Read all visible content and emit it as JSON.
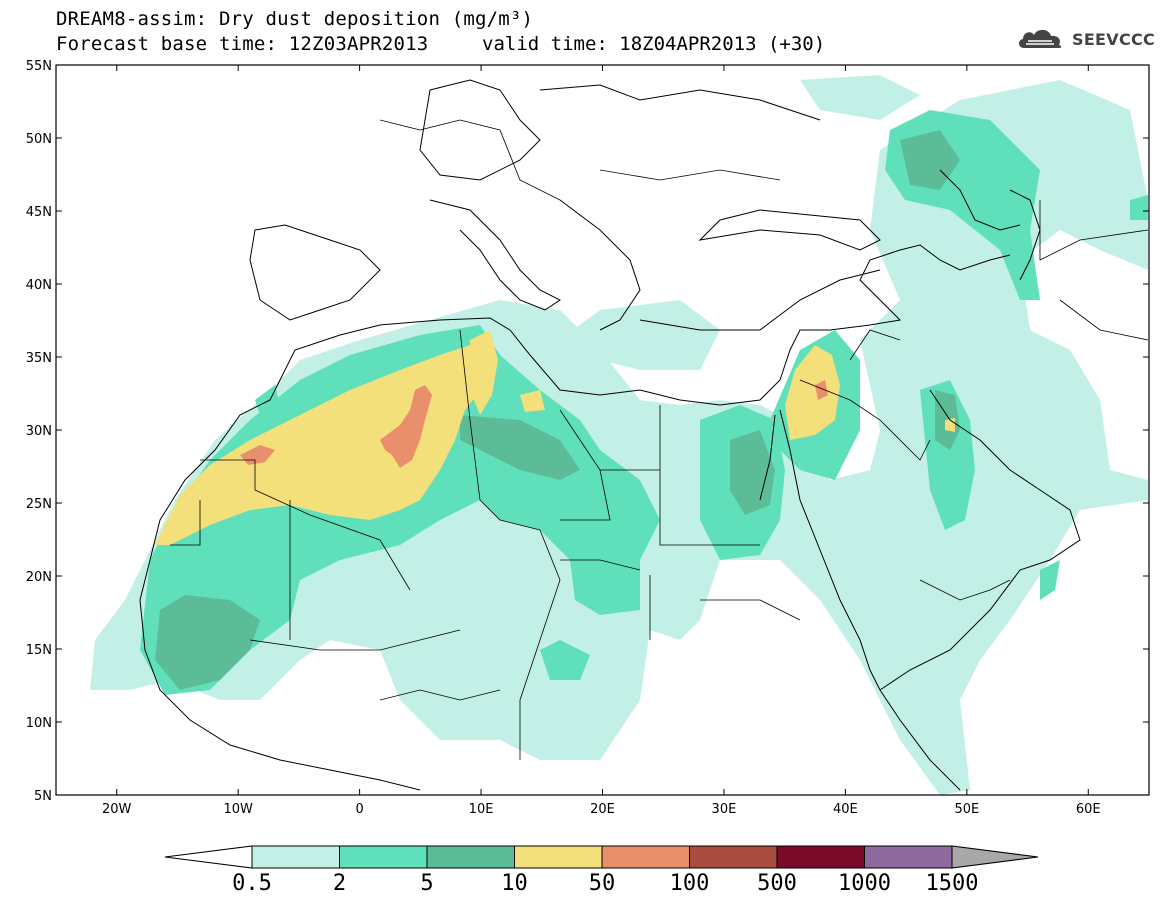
{
  "title": {
    "line1": "DREAM8-assim: Dry dust deposition (mg/m³)",
    "line2": "Forecast base time: 12Z03APR2013",
    "valid": "valid time: 18Z04APR2013 (+30)"
  },
  "logo": {
    "text": "SEEVCCC",
    "icon": "cloud-icon"
  },
  "map": {
    "region": "North Africa, Europe and Middle East",
    "lon_range": [
      -25,
      65
    ],
    "lat_range": [
      5,
      55
    ],
    "lat_ticks": [
      {
        "value": 55,
        "label": "55N"
      },
      {
        "value": 50,
        "label": "50N"
      },
      {
        "value": 45,
        "label": "45N"
      },
      {
        "value": 40,
        "label": "40N"
      },
      {
        "value": 35,
        "label": "35N"
      },
      {
        "value": 30,
        "label": "30N"
      },
      {
        "value": 25,
        "label": "25N"
      },
      {
        "value": 20,
        "label": "20N"
      },
      {
        "value": 15,
        "label": "15N"
      },
      {
        "value": 10,
        "label": "10N"
      },
      {
        "value": 5,
        "label": "5N"
      }
    ],
    "lon_ticks": [
      {
        "value": -20,
        "label": "20W"
      },
      {
        "value": -10,
        "label": "10W"
      },
      {
        "value": 0,
        "label": "0"
      },
      {
        "value": 10,
        "label": "10E"
      },
      {
        "value": 20,
        "label": "20E"
      },
      {
        "value": 30,
        "label": "30E"
      },
      {
        "value": 40,
        "label": "40E"
      },
      {
        "value": 50,
        "label": "50E"
      },
      {
        "value": 60,
        "label": "60E"
      }
    ]
  },
  "colorbar": {
    "levels": [
      "0.5",
      "2",
      "5",
      "10",
      "50",
      "100",
      "500",
      "1000",
      "1500"
    ],
    "colors": [
      "#c2f0e6",
      "#5fe0bb",
      "#5cbc98",
      "#f3e07a",
      "#ea8f6c",
      "#a94b3e",
      "#7a0a2a",
      "#8e6a9e"
    ],
    "under_color": "#ffffff",
    "over_color": "#a8a8a8"
  }
}
